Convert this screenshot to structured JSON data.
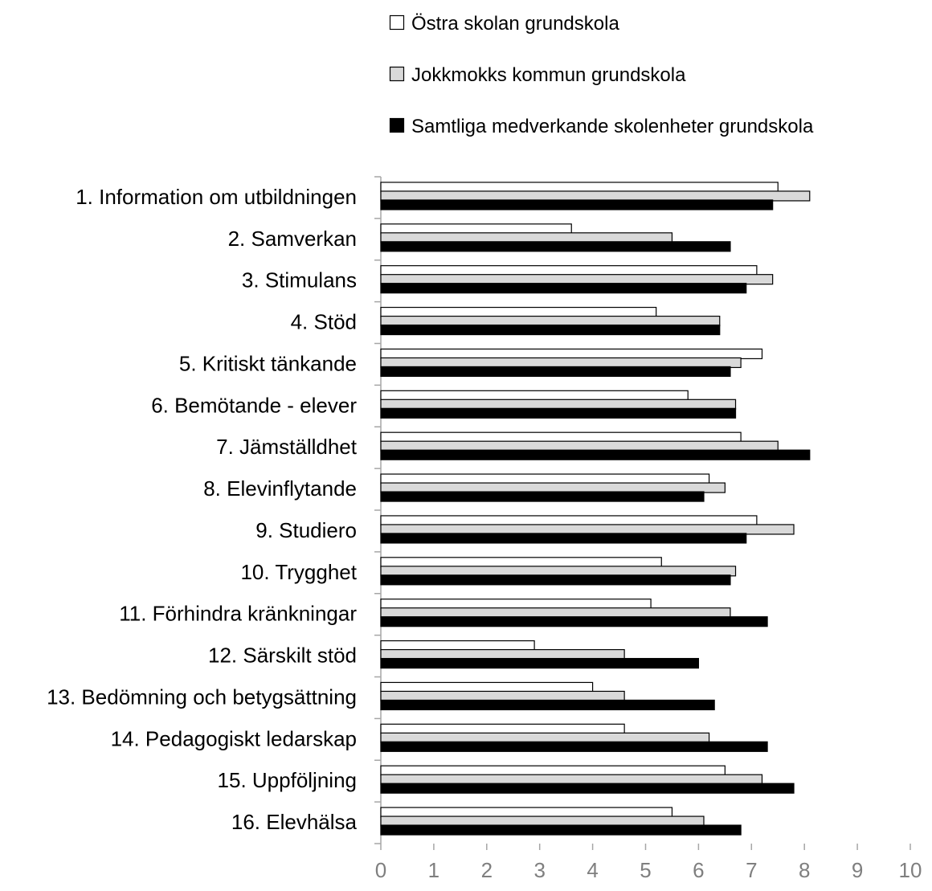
{
  "chart_data": {
    "type": "bar",
    "orientation": "horizontal",
    "categories": [
      "1. Information om utbildningen",
      "2. Samverkan",
      "3. Stimulans",
      "4. Stöd",
      "5. Kritiskt tänkande",
      "6. Bemötande - elever",
      "7. Jämställdhet",
      "8. Elevinflytande",
      "9. Studiero",
      "10. Trygghet",
      "11. Förhindra kränkningar",
      "12. Särskilt stöd",
      "13. Bedömning och betygsättning",
      "14. Pedagogiskt ledarskap",
      "15. Uppföljning",
      "16. Elevhälsa"
    ],
    "series": [
      {
        "name": "Östra skolan grundskola",
        "color": "#ffffff",
        "values": [
          7.5,
          3.6,
          7.1,
          5.2,
          7.2,
          5.8,
          6.8,
          6.2,
          7.1,
          5.3,
          5.1,
          2.9,
          4.0,
          4.6,
          6.5,
          5.5
        ]
      },
      {
        "name": "Jokkmokks kommun grundskola",
        "color": "#d9d9d9",
        "values": [
          8.1,
          5.5,
          7.4,
          6.4,
          6.8,
          6.7,
          7.5,
          6.5,
          7.8,
          6.7,
          6.6,
          4.6,
          4.6,
          6.2,
          7.2,
          6.1
        ]
      },
      {
        "name": "Samtliga medverkande skolenheter grundskola",
        "color": "#000000",
        "values": [
          7.4,
          6.6,
          6.9,
          6.4,
          6.6,
          6.7,
          8.1,
          6.1,
          6.9,
          6.6,
          7.3,
          6.0,
          6.3,
          7.3,
          7.8,
          6.8
        ]
      }
    ],
    "xlim": [
      0,
      10
    ],
    "x_ticks": [
      "0",
      "1",
      "2",
      "3",
      "4",
      "5",
      "6",
      "7",
      "8",
      "9",
      "10"
    ],
    "grid": false,
    "legend_position": "top"
  }
}
